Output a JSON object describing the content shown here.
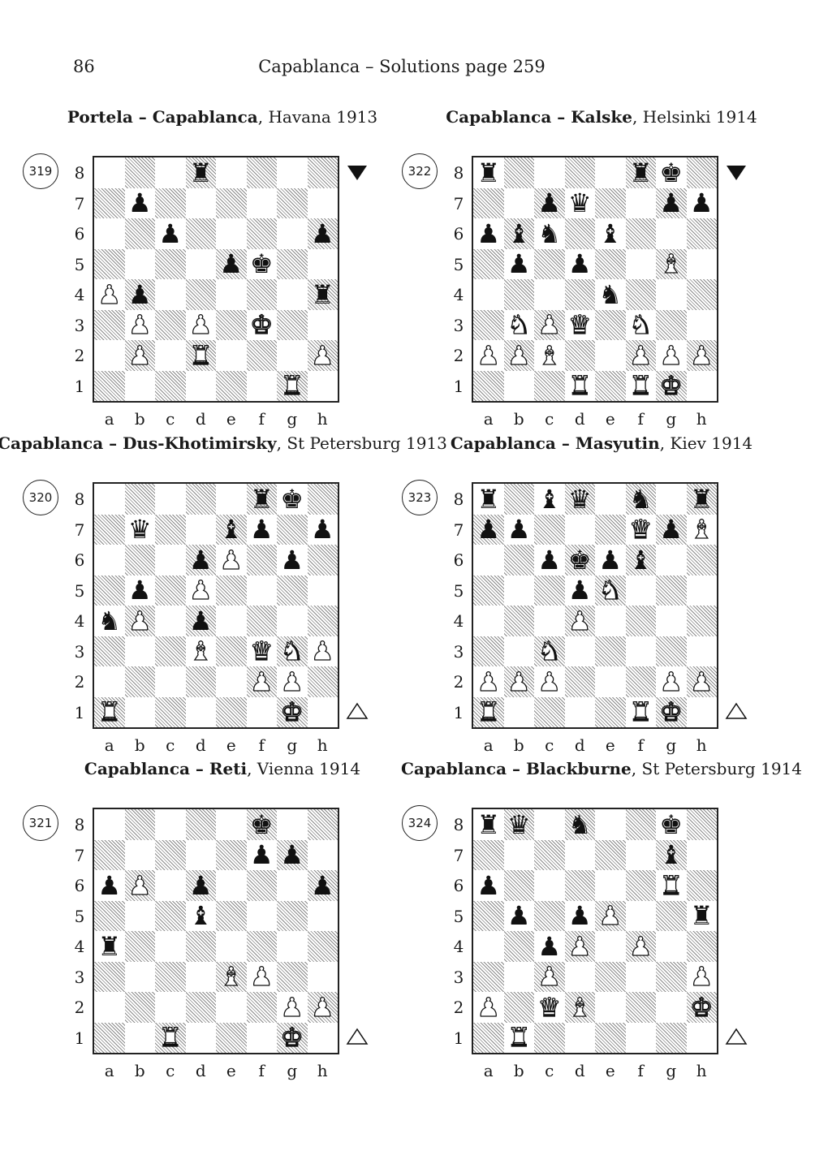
{
  "page_number": "86",
  "running_head": "Capablanca – Solutions page 259",
  "files": [
    "a",
    "b",
    "c",
    "d",
    "e",
    "f",
    "g",
    "h"
  ],
  "ranks": [
    "8",
    "7",
    "6",
    "5",
    "4",
    "3",
    "2",
    "1"
  ],
  "diagrams": [
    {
      "id": "319",
      "title_bold": "Portela – Capablanca",
      "title_rest": ", Havana 1913",
      "to_move": "black",
      "turn_icon": "black-to-move-triangle-icon",
      "pieces": [
        {
          "square": "d8",
          "piece": "rook",
          "color": "black",
          "glyph": "♜"
        },
        {
          "square": "b7",
          "piece": "pawn",
          "color": "black",
          "glyph": "♟"
        },
        {
          "square": "c6",
          "piece": "pawn",
          "color": "black",
          "glyph": "♟"
        },
        {
          "square": "h6",
          "piece": "pawn",
          "color": "black",
          "glyph": "♟"
        },
        {
          "square": "e5",
          "piece": "pawn",
          "color": "black",
          "glyph": "♟"
        },
        {
          "square": "f5",
          "piece": "king",
          "color": "black",
          "glyph": "♚"
        },
        {
          "square": "a4",
          "piece": "pawn",
          "color": "white",
          "glyph": "♟"
        },
        {
          "square": "b4",
          "piece": "pawn",
          "color": "black",
          "glyph": "♟"
        },
        {
          "square": "h4",
          "piece": "rook",
          "color": "black",
          "glyph": "♜"
        },
        {
          "square": "b3",
          "piece": "pawn",
          "color": "white",
          "glyph": "♟"
        },
        {
          "square": "d3",
          "piece": "pawn",
          "color": "white",
          "glyph": "♟"
        },
        {
          "square": "f3",
          "piece": "king",
          "color": "white",
          "glyph": "♚"
        },
        {
          "square": "b2",
          "piece": "pawn",
          "color": "white",
          "glyph": "♟"
        },
        {
          "square": "d2",
          "piece": "rook",
          "color": "white",
          "glyph": "♜"
        },
        {
          "square": "h2",
          "piece": "pawn",
          "color": "white",
          "glyph": "♟"
        },
        {
          "square": "g1",
          "piece": "rook",
          "color": "white",
          "glyph": "♜"
        }
      ]
    },
    {
      "id": "322",
      "title_bold": "Capablanca – Kalske",
      "title_rest": ", Helsinki 1914",
      "to_move": "black",
      "turn_icon": "black-to-move-triangle-icon",
      "pieces": [
        {
          "square": "a8",
          "piece": "rook",
          "color": "black",
          "glyph": "♜"
        },
        {
          "square": "f8",
          "piece": "rook",
          "color": "black",
          "glyph": "♜"
        },
        {
          "square": "g8",
          "piece": "king",
          "color": "black",
          "glyph": "♚"
        },
        {
          "square": "c7",
          "piece": "pawn",
          "color": "black",
          "glyph": "♟"
        },
        {
          "square": "d7",
          "piece": "queen",
          "color": "black",
          "glyph": "♛"
        },
        {
          "square": "g7",
          "piece": "pawn",
          "color": "black",
          "glyph": "♟"
        },
        {
          "square": "h7",
          "piece": "pawn",
          "color": "black",
          "glyph": "♟"
        },
        {
          "square": "a6",
          "piece": "pawn",
          "color": "black",
          "glyph": "♟"
        },
        {
          "square": "b6",
          "piece": "bishop",
          "color": "black",
          "glyph": "♝"
        },
        {
          "square": "c6",
          "piece": "knight",
          "color": "black",
          "glyph": "♞"
        },
        {
          "square": "e6",
          "piece": "bishop",
          "color": "black",
          "glyph": "♝"
        },
        {
          "square": "b5",
          "piece": "pawn",
          "color": "black",
          "glyph": "♟"
        },
        {
          "square": "d5",
          "piece": "pawn",
          "color": "black",
          "glyph": "♟"
        },
        {
          "square": "g5",
          "piece": "bishop",
          "color": "white",
          "glyph": "♝"
        },
        {
          "square": "e4",
          "piece": "knight",
          "color": "black",
          "glyph": "♞"
        },
        {
          "square": "b3",
          "piece": "knight",
          "color": "white",
          "glyph": "♞"
        },
        {
          "square": "c3",
          "piece": "pawn",
          "color": "white",
          "glyph": "♟"
        },
        {
          "square": "d3",
          "piece": "queen",
          "color": "white",
          "glyph": "♛"
        },
        {
          "square": "f3",
          "piece": "knight",
          "color": "white",
          "glyph": "♞"
        },
        {
          "square": "a2",
          "piece": "pawn",
          "color": "white",
          "glyph": "♟"
        },
        {
          "square": "b2",
          "piece": "pawn",
          "color": "white",
          "glyph": "♟"
        },
        {
          "square": "c2",
          "piece": "bishop",
          "color": "white",
          "glyph": "♝"
        },
        {
          "square": "f2",
          "piece": "pawn",
          "color": "white",
          "glyph": "♟"
        },
        {
          "square": "g2",
          "piece": "pawn",
          "color": "white",
          "glyph": "♟"
        },
        {
          "square": "h2",
          "piece": "pawn",
          "color": "white",
          "glyph": "♟"
        },
        {
          "square": "d1",
          "piece": "rook",
          "color": "white",
          "glyph": "♜"
        },
        {
          "square": "f1",
          "piece": "rook",
          "color": "white",
          "glyph": "♜"
        },
        {
          "square": "g1",
          "piece": "king",
          "color": "white",
          "glyph": "♚"
        }
      ]
    },
    {
      "id": "320",
      "title_bold": "Capablanca – Dus-Khotimirsky",
      "title_rest": ", St Petersburg 1913",
      "to_move": "white",
      "turn_icon": "white-to-move-triangle-icon",
      "pieces": [
        {
          "square": "f8",
          "piece": "rook",
          "color": "black",
          "glyph": "♜"
        },
        {
          "square": "g8",
          "piece": "king",
          "color": "black",
          "glyph": "♚"
        },
        {
          "square": "b7",
          "piece": "queen",
          "color": "black",
          "glyph": "♛"
        },
        {
          "square": "e7",
          "piece": "bishop",
          "color": "black",
          "glyph": "♝"
        },
        {
          "square": "f7",
          "piece": "pawn",
          "color": "black",
          "glyph": "♟"
        },
        {
          "square": "h7",
          "piece": "pawn",
          "color": "black",
          "glyph": "♟"
        },
        {
          "square": "d6",
          "piece": "pawn",
          "color": "black",
          "glyph": "♟"
        },
        {
          "square": "e6",
          "piece": "pawn",
          "color": "white",
          "glyph": "♟"
        },
        {
          "square": "g6",
          "piece": "pawn",
          "color": "black",
          "glyph": "♟"
        },
        {
          "square": "b5",
          "piece": "pawn",
          "color": "black",
          "glyph": "♟"
        },
        {
          "square": "d5",
          "piece": "pawn",
          "color": "white",
          "glyph": "♟"
        },
        {
          "square": "a4",
          "piece": "knight",
          "color": "black",
          "glyph": "♞"
        },
        {
          "square": "b4",
          "piece": "pawn",
          "color": "white",
          "glyph": "♟"
        },
        {
          "square": "d4",
          "piece": "pawn",
          "color": "black",
          "glyph": "♟"
        },
        {
          "square": "d3",
          "piece": "bishop",
          "color": "white",
          "glyph": "♝"
        },
        {
          "square": "f3",
          "piece": "queen",
          "color": "white",
          "glyph": "♛"
        },
        {
          "square": "g3",
          "piece": "knight",
          "color": "white",
          "glyph": "♞"
        },
        {
          "square": "h3",
          "piece": "pawn",
          "color": "white",
          "glyph": "♟"
        },
        {
          "square": "f2",
          "piece": "pawn",
          "color": "white",
          "glyph": "♟"
        },
        {
          "square": "g2",
          "piece": "pawn",
          "color": "white",
          "glyph": "♟"
        },
        {
          "square": "a1",
          "piece": "rook",
          "color": "white",
          "glyph": "♜"
        },
        {
          "square": "g1",
          "piece": "king",
          "color": "white",
          "glyph": "♚"
        }
      ]
    },
    {
      "id": "323",
      "title_bold": "Capablanca – Masyutin",
      "title_rest": ", Kiev 1914",
      "to_move": "white",
      "turn_icon": "white-to-move-triangle-icon",
      "pieces": [
        {
          "square": "a8",
          "piece": "rook",
          "color": "black",
          "glyph": "♜"
        },
        {
          "square": "c8",
          "piece": "bishop",
          "color": "black",
          "glyph": "♝"
        },
        {
          "square": "d8",
          "piece": "queen",
          "color": "black",
          "glyph": "♛"
        },
        {
          "square": "f8",
          "piece": "knight",
          "color": "black",
          "glyph": "♞"
        },
        {
          "square": "h8",
          "piece": "rook",
          "color": "black",
          "glyph": "♜"
        },
        {
          "square": "a7",
          "piece": "pawn",
          "color": "black",
          "glyph": "♟"
        },
        {
          "square": "b7",
          "piece": "pawn",
          "color": "black",
          "glyph": "♟"
        },
        {
          "square": "f7",
          "piece": "queen",
          "color": "white",
          "glyph": "♛"
        },
        {
          "square": "g7",
          "piece": "pawn",
          "color": "black",
          "glyph": "♟"
        },
        {
          "square": "h7",
          "piece": "bishop",
          "color": "white",
          "glyph": "♝"
        },
        {
          "square": "c6",
          "piece": "pawn",
          "color": "black",
          "glyph": "♟"
        },
        {
          "square": "d6",
          "piece": "king",
          "color": "black",
          "glyph": "♚"
        },
        {
          "square": "e6",
          "piece": "pawn",
          "color": "black",
          "glyph": "♟"
        },
        {
          "square": "f6",
          "piece": "bishop",
          "color": "black",
          "glyph": "♝"
        },
        {
          "square": "d5",
          "piece": "pawn",
          "color": "black",
          "glyph": "♟"
        },
        {
          "square": "e5",
          "piece": "knight",
          "color": "white",
          "glyph": "♞"
        },
        {
          "square": "d4",
          "piece": "pawn",
          "color": "white",
          "glyph": "♟"
        },
        {
          "square": "c3",
          "piece": "knight",
          "color": "white",
          "glyph": "♞"
        },
        {
          "square": "a2",
          "piece": "pawn",
          "color": "white",
          "glyph": "♟"
        },
        {
          "square": "b2",
          "piece": "pawn",
          "color": "white",
          "glyph": "♟"
        },
        {
          "square": "c2",
          "piece": "pawn",
          "color": "white",
          "glyph": "♟"
        },
        {
          "square": "g2",
          "piece": "pawn",
          "color": "white",
          "glyph": "♟"
        },
        {
          "square": "h2",
          "piece": "pawn",
          "color": "white",
          "glyph": "♟"
        },
        {
          "square": "a1",
          "piece": "rook",
          "color": "white",
          "glyph": "♜"
        },
        {
          "square": "f1",
          "piece": "rook",
          "color": "white",
          "glyph": "♜"
        },
        {
          "square": "g1",
          "piece": "king",
          "color": "white",
          "glyph": "♚"
        }
      ]
    },
    {
      "id": "321",
      "title_bold": "Capablanca – Reti",
      "title_rest": ", Vienna 1914",
      "to_move": "white",
      "turn_icon": "white-to-move-triangle-icon",
      "pieces": [
        {
          "square": "f8",
          "piece": "king",
          "color": "black",
          "glyph": "♚"
        },
        {
          "square": "f7",
          "piece": "pawn",
          "color": "black",
          "glyph": "♟"
        },
        {
          "square": "g7",
          "piece": "pawn",
          "color": "black",
          "glyph": "♟"
        },
        {
          "square": "a6",
          "piece": "pawn",
          "color": "black",
          "glyph": "♟"
        },
        {
          "square": "b6",
          "piece": "pawn",
          "color": "white",
          "glyph": "♟"
        },
        {
          "square": "d6",
          "piece": "pawn",
          "color": "black",
          "glyph": "♟"
        },
        {
          "square": "h6",
          "piece": "pawn",
          "color": "black",
          "glyph": "♟"
        },
        {
          "square": "d5",
          "piece": "bishop",
          "color": "black",
          "glyph": "♝"
        },
        {
          "square": "a4",
          "piece": "rook",
          "color": "black",
          "glyph": "♜"
        },
        {
          "square": "e3",
          "piece": "bishop",
          "color": "white",
          "glyph": "♝"
        },
        {
          "square": "f3",
          "piece": "pawn",
          "color": "white",
          "glyph": "♟"
        },
        {
          "square": "g2",
          "piece": "pawn",
          "color": "white",
          "glyph": "♟"
        },
        {
          "square": "h2",
          "piece": "pawn",
          "color": "white",
          "glyph": "♟"
        },
        {
          "square": "c1",
          "piece": "rook",
          "color": "white",
          "glyph": "♜"
        },
        {
          "square": "g1",
          "piece": "king",
          "color": "white",
          "glyph": "♚"
        }
      ]
    },
    {
      "id": "324",
      "title_bold": "Capablanca – Blackburne",
      "title_rest": ", St Petersburg 1914",
      "to_move": "white",
      "turn_icon": "white-to-move-triangle-icon",
      "pieces": [
        {
          "square": "a8",
          "piece": "rook",
          "color": "black",
          "glyph": "♜"
        },
        {
          "square": "b8",
          "piece": "queen",
          "color": "black",
          "glyph": "♛"
        },
        {
          "square": "d8",
          "piece": "knight",
          "color": "black",
          "glyph": "♞"
        },
        {
          "square": "g8",
          "piece": "king",
          "color": "black",
          "glyph": "♚"
        },
        {
          "square": "g7",
          "piece": "bishop",
          "color": "black",
          "glyph": "♝"
        },
        {
          "square": "a6",
          "piece": "pawn",
          "color": "black",
          "glyph": "♟"
        },
        {
          "square": "g6",
          "piece": "rook",
          "color": "white",
          "glyph": "♜"
        },
        {
          "square": "b5",
          "piece": "pawn",
          "color": "black",
          "glyph": "♟"
        },
        {
          "square": "d5",
          "piece": "pawn",
          "color": "black",
          "glyph": "♟"
        },
        {
          "square": "e5",
          "piece": "pawn",
          "color": "white",
          "glyph": "♟"
        },
        {
          "square": "h5",
          "piece": "rook",
          "color": "black",
          "glyph": "♜"
        },
        {
          "square": "c4",
          "piece": "pawn",
          "color": "black",
          "glyph": "♟"
        },
        {
          "square": "d4",
          "piece": "pawn",
          "color": "white",
          "glyph": "♟"
        },
        {
          "square": "f4",
          "piece": "pawn",
          "color": "white",
          "glyph": "♟"
        },
        {
          "square": "c3",
          "piece": "pawn",
          "color": "white",
          "glyph": "♟"
        },
        {
          "square": "h3",
          "piece": "pawn",
          "color": "white",
          "glyph": "♟"
        },
        {
          "square": "a2",
          "piece": "pawn",
          "color": "white",
          "glyph": "♟"
        },
        {
          "square": "c2",
          "piece": "queen",
          "color": "white",
          "glyph": "♛"
        },
        {
          "square": "d2",
          "piece": "bishop",
          "color": "white",
          "glyph": "♝"
        },
        {
          "square": "h2",
          "piece": "king",
          "color": "white",
          "glyph": "♚"
        },
        {
          "square": "b1",
          "piece": "rook",
          "color": "white",
          "glyph": "♜"
        }
      ]
    }
  ]
}
